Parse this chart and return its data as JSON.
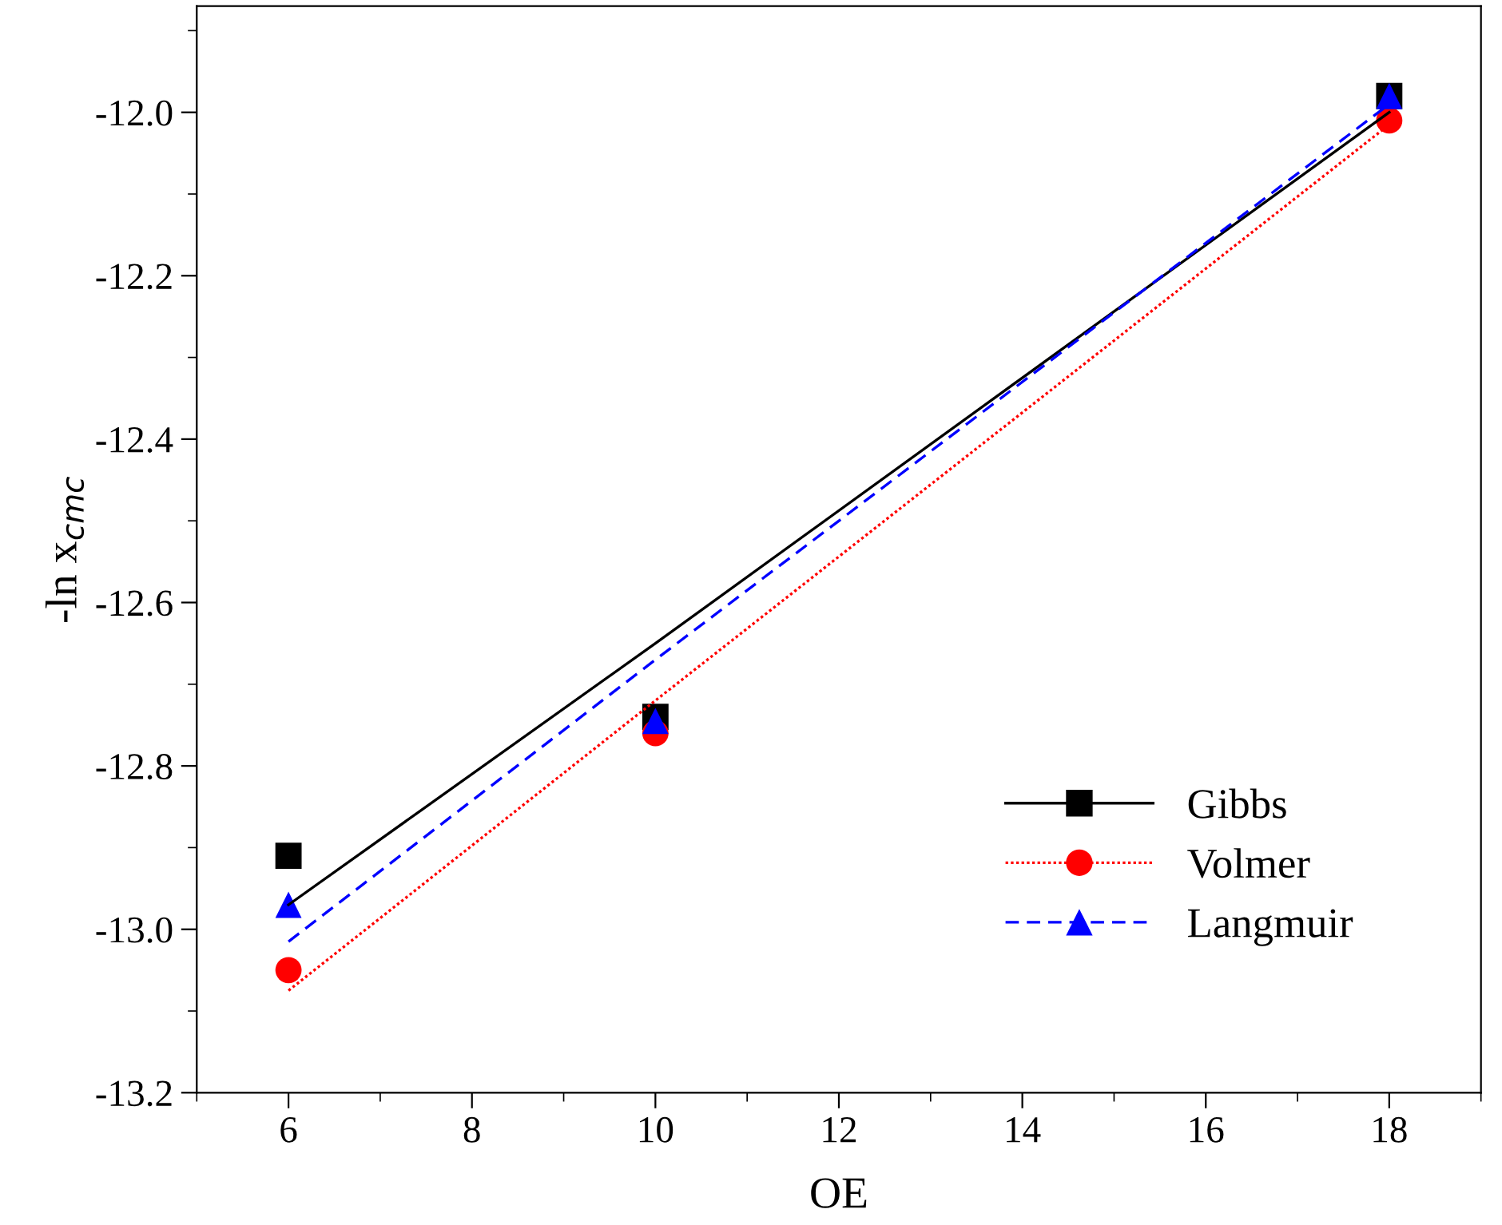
{
  "chart_data": {
    "type": "scatter",
    "xlabel": "OE",
    "ylabel": "-ln x$_{cmc}$",
    "xlim": [
      5,
      19
    ],
    "xticks": [
      6,
      8,
      10,
      12,
      14,
      16,
      18
    ],
    "ylim": [
      -13.2,
      -11.87
    ],
    "yticks": [
      -13.2,
      {
        "value": -13,
        "label": "-13.0"
      },
      -12.8,
      -12.6,
      -12.4,
      -12.2,
      {
        "value": -12,
        "label": "-12.0"
      }
    ],
    "x": [
      6,
      10,
      18
    ],
    "legend": "bottom right",
    "grid": false,
    "series": [
      {
        "name": "Gibbs",
        "marker": "square",
        "color": "#000000",
        "values": [
          -12.91,
          -12.74,
          -11.98
        ]
      },
      {
        "name": "Volmer",
        "marker": "circle",
        "color": "#ff0000",
        "values": [
          -13.05,
          -12.76,
          -12.01
        ]
      },
      {
        "name": "Langmuir",
        "marker": "triangle",
        "color": "#0000ff",
        "values": [
          -12.97,
          -12.745,
          -11.98
        ]
      },
      {
        "type": "line",
        "color": "#000000",
        "line_style": "solid",
        "values": [
          -12.97,
          -12.65,
          -12.0
        ]
      },
      {
        "type": "line",
        "color": "#ff0000",
        "line_style": "dotted",
        "values": [
          -13.075,
          -12.72,
          -12.015
        ]
      },
      {
        "type": "line",
        "color": "#0000ff",
        "line_style": "dashed",
        "values": [
          -13.015,
          -12.67,
          -11.99
        ]
      }
    ]
  }
}
